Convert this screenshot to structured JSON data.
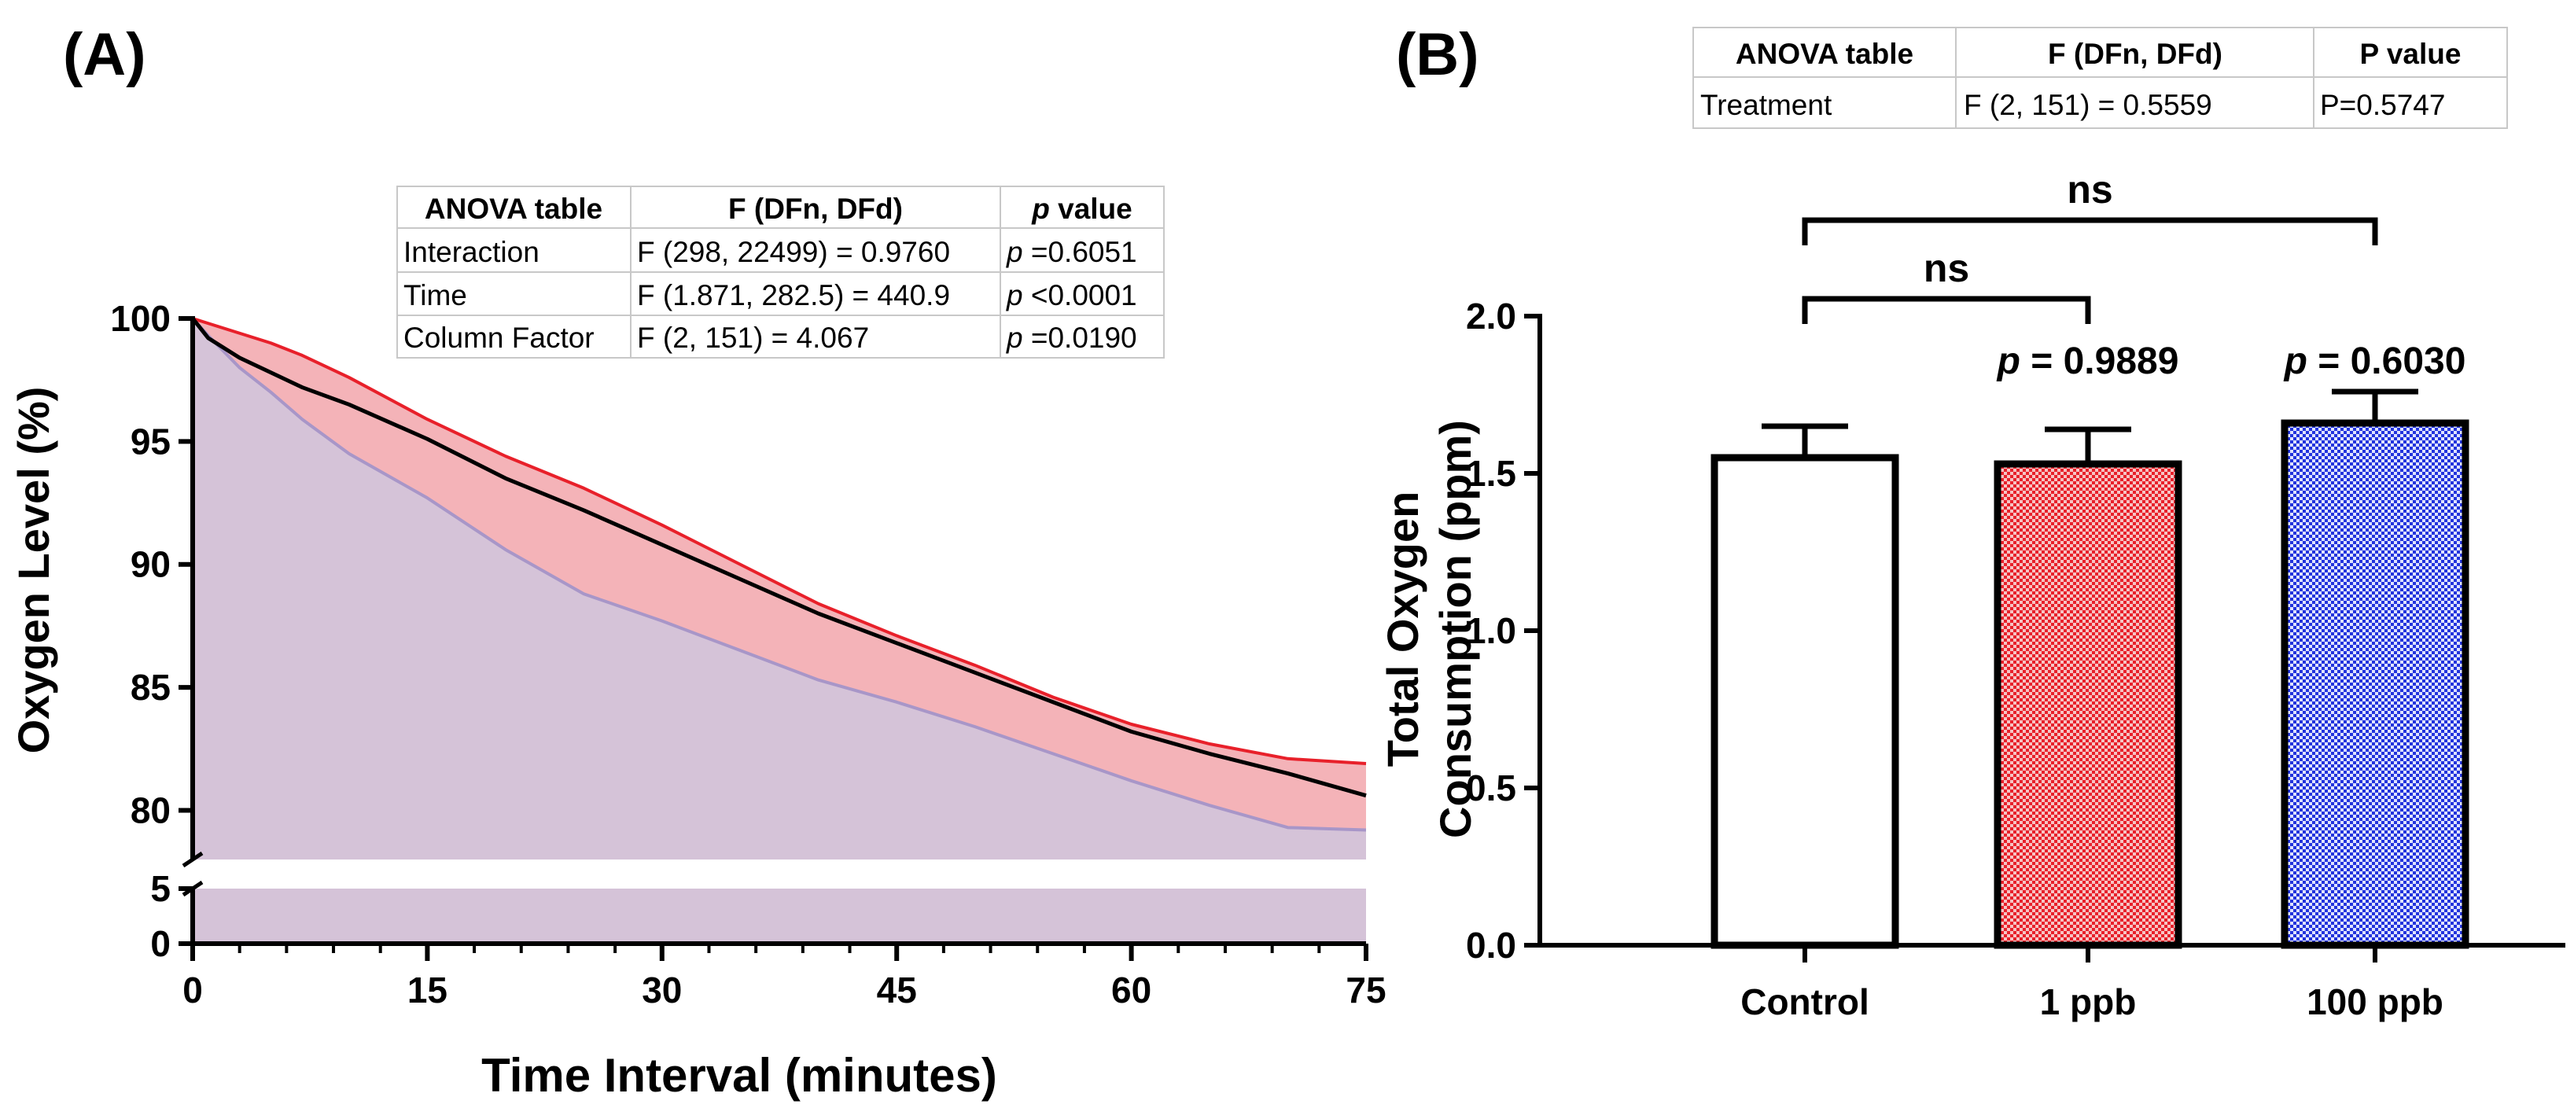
{
  "chart_data": [
    {
      "panel_label": "(A)",
      "type": "area",
      "xlabel": "Time Interval (minutes)",
      "ylabel": "Oxygen Level (%)",
      "xlim": [
        0,
        75
      ],
      "ylim_upper": [
        78,
        100
      ],
      "ylim_lower": [
        0,
        5
      ],
      "x_ticks": [
        "0",
        "15",
        "30",
        "45",
        "60",
        "75"
      ],
      "y_ticks_upper": [
        "100",
        "95",
        "90",
        "85",
        "80"
      ],
      "y_ticks_lower": [
        "5",
        "0"
      ],
      "colors": {
        "red": "#e8202a",
        "black": "#000000",
        "purple": "#a896c8",
        "red_fill": "#f4b3b8",
        "purple_fill": "#d5c3d8"
      },
      "series": [
        {
          "name": "1 ppb",
          "color": "#e8202a",
          "x": [
            0,
            1,
            3,
            5,
            7,
            10,
            15,
            20,
            25,
            30,
            35,
            40,
            45,
            50,
            55,
            60,
            65,
            70,
            75
          ],
          "values": [
            100.0,
            99.8,
            99.4,
            99.0,
            98.5,
            97.6,
            95.9,
            94.4,
            93.1,
            91.6,
            90.0,
            88.4,
            87.1,
            85.9,
            84.6,
            83.5,
            82.7,
            82.1,
            81.9
          ]
        },
        {
          "name": "Control",
          "color": "#000000",
          "x": [
            0,
            1,
            3,
            5,
            7,
            10,
            15,
            20,
            25,
            30,
            35,
            40,
            45,
            50,
            55,
            60,
            65,
            70,
            75
          ],
          "values": [
            100.0,
            99.2,
            98.4,
            97.8,
            97.2,
            96.5,
            95.1,
            93.5,
            92.2,
            90.8,
            89.4,
            88.0,
            86.8,
            85.6,
            84.4,
            83.2,
            82.3,
            81.5,
            80.6
          ]
        },
        {
          "name": "100 ppb",
          "color": "#a896c8",
          "x": [
            0,
            1,
            3,
            5,
            7,
            10,
            15,
            20,
            25,
            30,
            35,
            40,
            45,
            50,
            55,
            60,
            65,
            70,
            75
          ],
          "values": [
            100.0,
            99.3,
            98.0,
            97.0,
            95.9,
            94.5,
            92.7,
            90.6,
            88.8,
            87.7,
            86.5,
            85.3,
            84.4,
            83.4,
            82.3,
            81.2,
            80.2,
            79.3,
            79.2
          ]
        }
      ],
      "anova_table": {
        "headers": [
          "ANOVA table",
          "F (DFn, DFd)",
          "value"
        ],
        "header_p": "p",
        "rows": [
          {
            "name": "Interaction",
            "f": "F (298, 22499) = 0.9760",
            "p_italic": "p",
            "p_val": "=0.6051"
          },
          {
            "name": "Time",
            "f": "F (1.871, 282.5) = 440.9",
            "p_italic": "p",
            "p_val": "<0.0001"
          },
          {
            "name": "Column Factor",
            "f": "F (2, 151) = 4.067",
            "p_italic": "p",
            "p_val": "=0.0190"
          }
        ]
      }
    },
    {
      "panel_label": "(B)",
      "type": "bar",
      "ylabel_line1": "Total Oxygen",
      "ylabel_line2": "Consumption (ppm)",
      "ylim": [
        0,
        2.0
      ],
      "y_ticks": [
        "0.0",
        "0.5",
        "1.0",
        "1.5",
        "2.0"
      ],
      "categories": [
        "Control",
        "1 ppb",
        "100 ppb"
      ],
      "values": [
        1.55,
        1.53,
        1.66
      ],
      "errors": [
        0.1,
        0.11,
        0.1
      ],
      "colors": [
        "#ffffff",
        "#e8202a",
        "#2233dd"
      ],
      "p_labels": [
        {
          "italic": "p",
          "text": " = 0.9889"
        },
        {
          "italic": "p",
          "text": " = 0.6030"
        }
      ],
      "significance": [
        "ns",
        "ns"
      ],
      "anova_table": {
        "headers": [
          "ANOVA table",
          "F (DFn, DFd)",
          "P value"
        ],
        "rows": [
          {
            "name": "Treatment",
            "f": "F (2, 151) = 0.5559",
            "p": "P=0.5747"
          }
        ]
      }
    }
  ]
}
